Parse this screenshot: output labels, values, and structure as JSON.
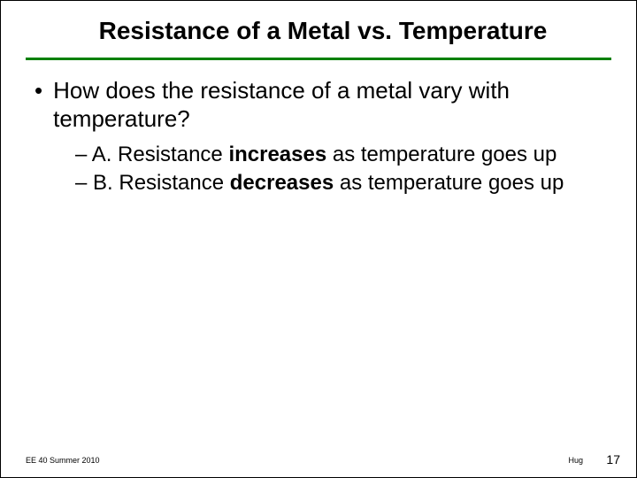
{
  "title": "Resistance of a Metal vs. Temperature",
  "underline_color": "#008000",
  "main_bullet": "How does the resistance of a metal vary with temperature?",
  "options": [
    {
      "prefix": "– A. Resistance ",
      "bold": "increases",
      "suffix": " as temperature goes up"
    },
    {
      "prefix": "–  B. Resistance ",
      "bold": "decreases",
      "suffix": " as temperature goes up"
    }
  ],
  "footer": {
    "course": "EE 40 Summer 2010",
    "author": "Hug",
    "page": "17"
  }
}
